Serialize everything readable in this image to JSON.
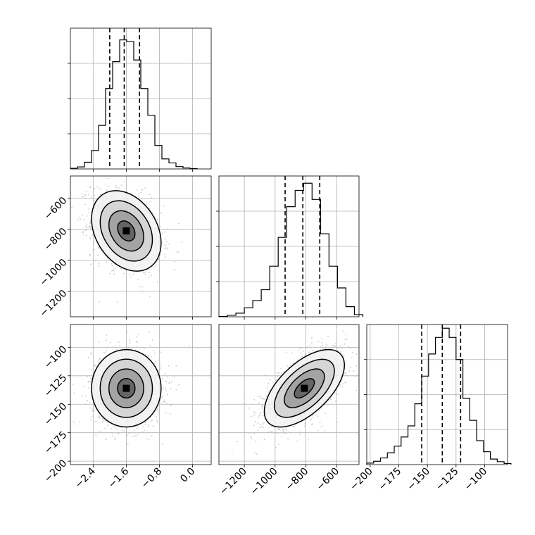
{
  "chart_data": {
    "type": "corner",
    "parameters": [
      {
        "ticks": [
          -2.4,
          -1.6,
          -0.8,
          0.0
        ],
        "tick_labels": [
          "−2.4",
          "−1.6",
          "−0.8",
          "0.0"
        ],
        "range": [
          -2.95,
          0.45
        ],
        "quantiles": [
          -2.0,
          -1.65,
          -1.28
        ],
        "histogram": [
          {
            "x": -2.95,
            "count": 0.2
          },
          {
            "x": -2.78,
            "count": 0.6
          },
          {
            "x": -2.61,
            "count": 2.0
          },
          {
            "x": -2.44,
            "count": 5.5
          },
          {
            "x": -2.27,
            "count": 13.0
          },
          {
            "x": -2.1,
            "count": 24.0
          },
          {
            "x": -1.93,
            "count": 32.0
          },
          {
            "x": -1.76,
            "count": 38.5
          },
          {
            "x": -1.59,
            "count": 38.0
          },
          {
            "x": -1.42,
            "count": 32.5
          },
          {
            "x": -1.25,
            "count": 24.0
          },
          {
            "x": -1.08,
            "count": 16.0
          },
          {
            "x": -0.91,
            "count": 7.0
          },
          {
            "x": -0.74,
            "count": 3.0
          },
          {
            "x": -0.57,
            "count": 1.8
          },
          {
            "x": -0.4,
            "count": 0.7
          },
          {
            "x": -0.23,
            "count": 0.3
          },
          {
            "x": -0.06,
            "count": 0.1
          }
        ],
        "y_max": 42
      },
      {
        "ticks": [
          -1200,
          -1000,
          -800,
          -600
        ],
        "tick_labels": [
          "−1200",
          "−1000",
          "−800",
          "−600"
        ],
        "range": [
          -1365,
          -455
        ],
        "quantiles": [
          -935,
          -820,
          -710
        ],
        "histogram": [
          {
            "x": -1365,
            "count": 0.1
          },
          {
            "x": -1310,
            "count": 0.4
          },
          {
            "x": -1255,
            "count": 1.0
          },
          {
            "x": -1200,
            "count": 2.5
          },
          {
            "x": -1145,
            "count": 4.5
          },
          {
            "x": -1090,
            "count": 7.5
          },
          {
            "x": -1035,
            "count": 14.0
          },
          {
            "x": -980,
            "count": 22.0
          },
          {
            "x": -925,
            "count": 30.5
          },
          {
            "x": -870,
            "count": 35.0
          },
          {
            "x": -815,
            "count": 37.0
          },
          {
            "x": -760,
            "count": 32.5
          },
          {
            "x": -705,
            "count": 23.0
          },
          {
            "x": -650,
            "count": 14.0
          },
          {
            "x": -595,
            "count": 8.0
          },
          {
            "x": -540,
            "count": 2.8
          },
          {
            "x": -485,
            "count": 0.6
          }
        ],
        "y_max": 39
      },
      {
        "ticks": [
          -200,
          -175,
          -150,
          -125,
          -100
        ],
        "tick_labels": [
          "−200",
          "−175",
          "−150",
          "−125",
          "−100"
        ],
        "range": [
          -203,
          -80
        ],
        "quantiles": [
          -155,
          -137,
          -121
        ],
        "histogram": [
          {
            "x": -203,
            "count": 0.4
          },
          {
            "x": -197,
            "count": 0.9
          },
          {
            "x": -191,
            "count": 1.8
          },
          {
            "x": -185,
            "count": 3.2
          },
          {
            "x": -179,
            "count": 5.0
          },
          {
            "x": -173,
            "count": 7.5
          },
          {
            "x": -167,
            "count": 10.5
          },
          {
            "x": -161,
            "count": 16.5
          },
          {
            "x": -155,
            "count": 24.0
          },
          {
            "x": -149,
            "count": 30.0
          },
          {
            "x": -143,
            "count": 34.5
          },
          {
            "x": -137,
            "count": 37.0
          },
          {
            "x": -131,
            "count": 34.5
          },
          {
            "x": -125,
            "count": 28.5
          },
          {
            "x": -119,
            "count": 18.0
          },
          {
            "x": -113,
            "count": 12.0
          },
          {
            "x": -107,
            "count": 6.5
          },
          {
            "x": -101,
            "count": 3.5
          },
          {
            "x": -95,
            "count": 1.5
          },
          {
            "x": -89,
            "count": 0.8
          },
          {
            "x": -83,
            "count": 0.3
          }
        ],
        "y_max": 38
      }
    ],
    "pairs": [
      {
        "x_param": 0,
        "y_param": 1,
        "center": [
          -1.6,
          -810
        ],
        "sigma": [
          0.42,
          130
        ],
        "rho": -0.3,
        "n_points": 1300
      },
      {
        "x_param": 0,
        "y_param": 2,
        "center": [
          -1.6,
          -136
        ],
        "sigma": [
          0.42,
          17
        ],
        "rho": 0.0,
        "n_points": 1300
      },
      {
        "x_param": 1,
        "y_param": 2,
        "center": [
          -810,
          -136
        ],
        "sigma": [
          130,
          17
        ],
        "rho": 0.6,
        "n_points": 1300
      }
    ],
    "contour_levels_sigma": [
      0.5,
      1.0,
      1.5,
      2.0
    ],
    "colors": {
      "line": "#000000",
      "points": "#bdbdbd",
      "grid": "#b0b0b0"
    },
    "grid": true
  }
}
